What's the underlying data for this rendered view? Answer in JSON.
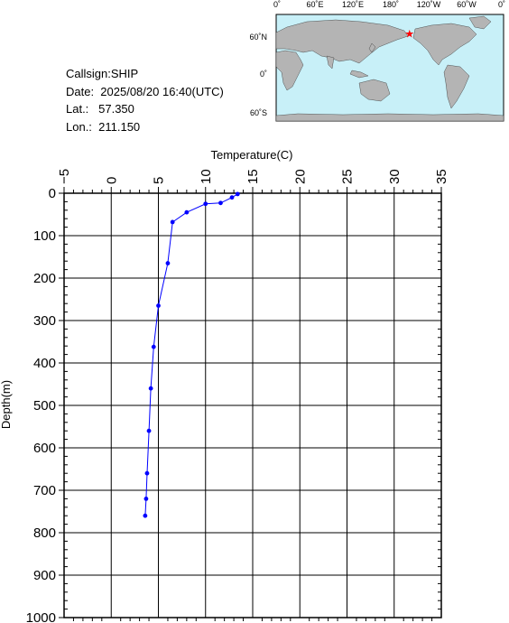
{
  "info": {
    "callsign": "Callsign:SHIP",
    "date": "Date:  2025/08/20 16:40(UTC)",
    "lat": "Lat.:   57.350",
    "lon": "Lon.:  211.150"
  },
  "map": {
    "lon_labels": [
      "0˚",
      "60˚E",
      "120˚E",
      "180˚",
      "120˚W",
      "60˚W",
      "0˚"
    ],
    "lat_labels": [
      "60˚N",
      "0˚",
      "60˚S"
    ],
    "station": {
      "lat": 57.35,
      "lon": 211.15
    },
    "colors": {
      "ocean": "#c8f0f8",
      "land": "#b4b4b4",
      "marker": "#ff0000"
    }
  },
  "chart_data": {
    "type": "line",
    "xlabel": "Temperature(C)",
    "ylabel": "Depth(m)",
    "xlim": [
      -5,
      35
    ],
    "ylim": [
      1000,
      0
    ],
    "x_ticks": [
      -5,
      0,
      5,
      10,
      15,
      20,
      25,
      30,
      35
    ],
    "y_ticks": [
      0,
      100,
      200,
      300,
      400,
      500,
      600,
      700,
      800,
      900,
      1000
    ],
    "grid": true,
    "line_color": "#0000ff",
    "series": [
      {
        "x": [
          13.4,
          12.8,
          11.6,
          10.0,
          8.0,
          6.5,
          6.0,
          5.0,
          4.5,
          4.2,
          4.0,
          3.8,
          3.7,
          3.6
        ],
        "y": [
          2,
          10,
          23,
          25,
          45,
          68,
          165,
          265,
          362,
          460,
          560,
          660,
          720,
          760
        ]
      }
    ]
  }
}
